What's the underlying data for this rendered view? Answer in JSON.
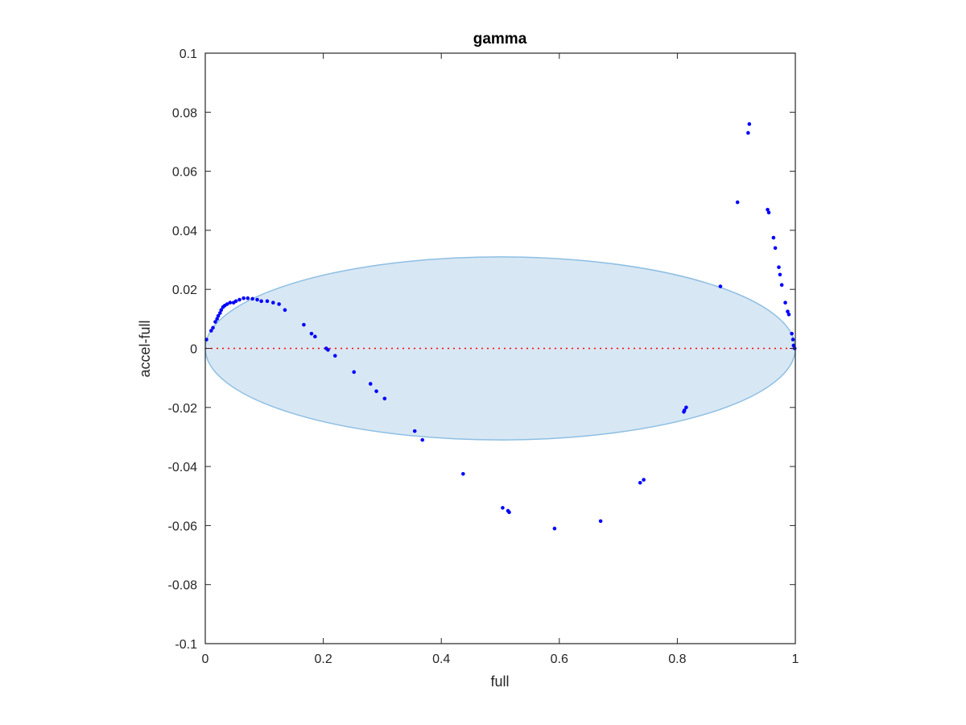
{
  "chart_data": {
    "type": "scatter",
    "title": "gamma",
    "xlabel": "full",
    "ylabel": "accel-full",
    "xlim": [
      0,
      1
    ],
    "ylim": [
      -0.1,
      0.1
    ],
    "grid": false,
    "x_ticks": [
      0,
      0.2,
      0.4,
      0.6,
      0.8,
      1
    ],
    "x_tick_labels": [
      "0",
      "0.2",
      "0.4",
      "0.6",
      "0.8",
      "1"
    ],
    "y_ticks": [
      -0.1,
      -0.08,
      -0.06,
      -0.04,
      -0.02,
      0,
      0.02,
      0.04,
      0.06,
      0.08,
      0.1
    ],
    "y_tick_labels": [
      "-0.1",
      "-0.08",
      "-0.06",
      "-0.04",
      "-0.02",
      "0",
      "0.02",
      "0.04",
      "0.06",
      "0.08",
      "0.1"
    ],
    "reference_line": {
      "y": 0,
      "style": "dotted",
      "color": "#ff0000"
    },
    "ellipse": {
      "cx": 0.5,
      "cy": 0,
      "rx": 0.5,
      "ry": 0.031,
      "fill": "#d8e7f4",
      "stroke": "#8dbfe3"
    },
    "marker_color": "#0000ff",
    "points": [
      [
        0.002,
        0.003
      ],
      [
        0.01,
        0.006
      ],
      [
        0.013,
        0.007
      ],
      [
        0.017,
        0.009
      ],
      [
        0.02,
        0.01
      ],
      [
        0.022,
        0.011
      ],
      [
        0.025,
        0.012
      ],
      [
        0.027,
        0.013
      ],
      [
        0.03,
        0.014
      ],
      [
        0.033,
        0.0145
      ],
      [
        0.037,
        0.015
      ],
      [
        0.042,
        0.0155
      ],
      [
        0.048,
        0.0155
      ],
      [
        0.052,
        0.016
      ],
      [
        0.058,
        0.0165
      ],
      [
        0.065,
        0.017
      ],
      [
        0.072,
        0.017
      ],
      [
        0.08,
        0.0168
      ],
      [
        0.088,
        0.0165
      ],
      [
        0.095,
        0.016
      ],
      [
        0.105,
        0.016
      ],
      [
        0.115,
        0.0155
      ],
      [
        0.125,
        0.015
      ],
      [
        0.135,
        0.013
      ],
      [
        0.167,
        0.008
      ],
      [
        0.18,
        0.005
      ],
      [
        0.186,
        0.004
      ],
      [
        0.205,
        0.0
      ],
      [
        0.208,
        -0.0005
      ],
      [
        0.22,
        -0.0025
      ],
      [
        0.252,
        -0.008
      ],
      [
        0.28,
        -0.012
      ],
      [
        0.29,
        -0.0145
      ],
      [
        0.304,
        -0.017
      ],
      [
        0.355,
        -0.028
      ],
      [
        0.368,
        -0.031
      ],
      [
        0.437,
        -0.0425
      ],
      [
        0.504,
        -0.054
      ],
      [
        0.513,
        -0.055
      ],
      [
        0.515,
        -0.0555
      ],
      [
        0.592,
        -0.061
      ],
      [
        0.67,
        -0.0585
      ],
      [
        0.737,
        -0.0455
      ],
      [
        0.743,
        -0.0445
      ],
      [
        0.811,
        -0.0215
      ],
      [
        0.812,
        -0.021
      ],
      [
        0.815,
        -0.02
      ],
      [
        0.873,
        0.021
      ],
      [
        0.902,
        0.0495
      ],
      [
        0.92,
        0.073
      ],
      [
        0.922,
        0.076
      ],
      [
        0.953,
        0.047
      ],
      [
        0.955,
        0.046
      ],
      [
        0.963,
        0.0375
      ],
      [
        0.966,
        0.034
      ],
      [
        0.972,
        0.0275
      ],
      [
        0.974,
        0.025
      ],
      [
        0.977,
        0.0215
      ],
      [
        0.983,
        0.0155
      ],
      [
        0.987,
        0.0125
      ],
      [
        0.989,
        0.0115
      ],
      [
        0.994,
        0.005
      ],
      [
        0.996,
        0.003
      ],
      [
        0.997,
        0.001
      ],
      [
        0.999,
        0.0
      ]
    ]
  }
}
